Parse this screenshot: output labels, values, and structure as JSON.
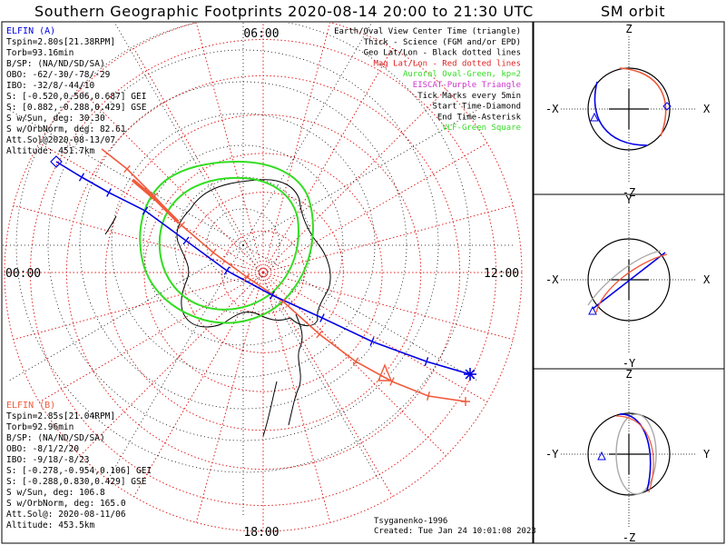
{
  "title": "Southern Geographic Footprints 2020-08-14 20:00 to 21:30 UTC",
  "sm_title": "SM orbit",
  "colors": {
    "elfin_a": "#0000e6",
    "elfin_b": "#f05a3c",
    "oval": "#33dd22",
    "latlon": "#000000",
    "mag": "#e02020",
    "eiscat": "#cc33cc"
  },
  "map": {
    "mlt_top": "06:00",
    "mlt_left": "00:00",
    "mlt_right": "12:00",
    "mlt_bottom": "18:00",
    "tick_count": 18
  },
  "elfin_a": {
    "name": "ELFIN (A)",
    "lines": [
      "Tspin=2.80s[21.38RPM]",
      "Torb=93.16min",
      "B/SP: (NA/ND/SD/SA)",
      "OBO: -62/-30/-78/-29",
      "IBO: -32/8/-44/10",
      "S: [-0.520,0.506,0.687] GEI",
      "S: [0.882,-0.288,0.429] GSE",
      "S w/Sun, deg: 30.30",
      "S w/OrbNorm, deg: 82.61",
      "Att.Sol@2020-08-13/07",
      "Altitude: 451.7km"
    ]
  },
  "elfin_b": {
    "name": "ELFIN (B)",
    "lines": [
      "Tspin=2.85s[21.04RPM]",
      "Torb=92.96min",
      "B/SP: (NA/ND/SD/SA)",
      "OBO: -8/1/2/20",
      "IBO: -9/18/-8/23",
      "S: [-0.278,-0.954,0.106] GEI",
      "S: [-0.288,0.830,0.429] GSE",
      "S w/Sun, deg: 106.8",
      "S w/OrbNorm, deg: 165.0",
      "Att.Sol@: 2020-08-11/06",
      "Altitude: 453.5km"
    ]
  },
  "legend": [
    {
      "text": "Earth/Oval View Center Time (triangle)",
      "color": "#000000"
    },
    {
      "text": "Thick - Science (FGM and/or EPD)",
      "color": "#000000"
    },
    {
      "text": "Geo Lat/Lon - Black dotted lines",
      "color": "#000000"
    },
    {
      "text": "Mag Lat/Lon - Red dotted lines",
      "color": "#e02020"
    },
    {
      "text": "Auroral Oval-Green, kp=2",
      "color": "#33dd22"
    },
    {
      "text": "EISCAT-Purple Triangle",
      "color": "#cc33cc"
    },
    {
      "text": "Tick Marks every 5min",
      "color": "#000000"
    },
    {
      "text": "Start Time-Diamond",
      "color": "#000000"
    },
    {
      "text": "End Time-Asterisk",
      "color": "#000000"
    },
    {
      "text": "VLF-Green Square",
      "color": "#33dd22"
    }
  ],
  "credit": "Tsyganenko-1996",
  "created": "Created: Tue Jan 24 10:01:08 2023",
  "sm_panels": [
    {
      "top": "Z",
      "bottom": "-Z",
      "left": "-X",
      "right": "X"
    },
    {
      "top": "Y",
      "bottom": "-Y",
      "left": "-X",
      "right": "X"
    },
    {
      "top": "Z",
      "bottom": "-Z",
      "left": "-Y",
      "right": "Y"
    }
  ]
}
